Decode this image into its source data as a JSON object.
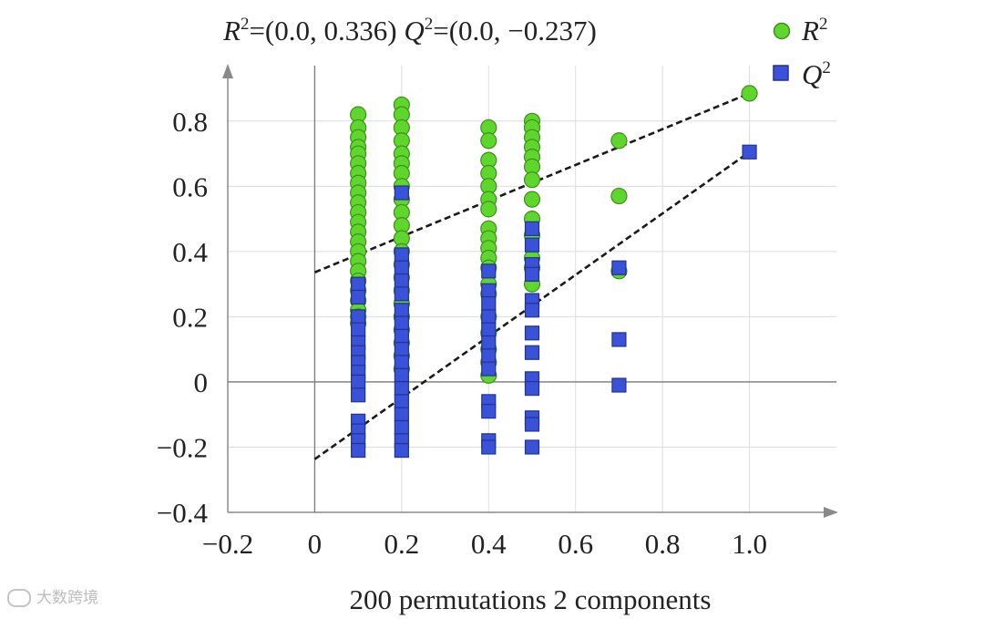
{
  "chart_data": {
    "type": "scatter",
    "title": {
      "r2_symbol": "R",
      "r2_exp": "2",
      "r2_rest": "=(0.0, 0.336) ",
      "q2_symbol": "Q",
      "q2_exp": "2",
      "q2_rest": "=(0.0, −0.237)"
    },
    "xlabel": "200 permutations 2 components",
    "xlim": [
      -0.2,
      1.2
    ],
    "ylim": [
      -0.4,
      0.97
    ],
    "xticks": [
      {
        "value": -0.2,
        "label": "−0.2"
      },
      {
        "value": 0,
        "label": "0"
      },
      {
        "value": 0.2,
        "label": "0.2"
      },
      {
        "value": 0.4,
        "label": "0.4"
      },
      {
        "value": 0.6,
        "label": "0.6"
      },
      {
        "value": 0.8,
        "label": "0.8"
      },
      {
        "value": 1.0,
        "label": "1.0"
      }
    ],
    "yticks": [
      {
        "value": -0.4,
        "label": "−0.4"
      },
      {
        "value": -0.2,
        "label": "−0.2"
      },
      {
        "value": 0,
        "label": "0"
      },
      {
        "value": 0.2,
        "label": "0.2"
      },
      {
        "value": 0.4,
        "label": "0.4"
      },
      {
        "value": 0.6,
        "label": "0.6"
      },
      {
        "value": 0.8,
        "label": "0.8"
      }
    ],
    "grid": true,
    "legend_position": "top-right",
    "series": [
      {
        "name": "R",
        "name_exp": "2",
        "marker": "circle",
        "color": "#5fd62c",
        "edge": "#3f8f1e",
        "points": [
          [
            0.1,
            0.82
          ],
          [
            0.1,
            0.78
          ],
          [
            0.1,
            0.75
          ],
          [
            0.1,
            0.72
          ],
          [
            0.1,
            0.7
          ],
          [
            0.1,
            0.67
          ],
          [
            0.1,
            0.64
          ],
          [
            0.1,
            0.61
          ],
          [
            0.1,
            0.58
          ],
          [
            0.1,
            0.55
          ],
          [
            0.1,
            0.52
          ],
          [
            0.1,
            0.49
          ],
          [
            0.1,
            0.46
          ],
          [
            0.1,
            0.43
          ],
          [
            0.1,
            0.4
          ],
          [
            0.1,
            0.37
          ],
          [
            0.1,
            0.34
          ],
          [
            0.1,
            0.31
          ],
          [
            0.1,
            0.28
          ],
          [
            0.1,
            0.25
          ],
          [
            0.1,
            0.22
          ],
          [
            0.1,
            0.2
          ],
          [
            0.1,
            0.18
          ],
          [
            0.2,
            0.85
          ],
          [
            0.2,
            0.82
          ],
          [
            0.2,
            0.78
          ],
          [
            0.2,
            0.74
          ],
          [
            0.2,
            0.7
          ],
          [
            0.2,
            0.67
          ],
          [
            0.2,
            0.64
          ],
          [
            0.2,
            0.6
          ],
          [
            0.2,
            0.56
          ],
          [
            0.2,
            0.52
          ],
          [
            0.2,
            0.48
          ],
          [
            0.2,
            0.44
          ],
          [
            0.2,
            0.4
          ],
          [
            0.2,
            0.36
          ],
          [
            0.2,
            0.32
          ],
          [
            0.2,
            0.28
          ],
          [
            0.2,
            0.24
          ],
          [
            0.2,
            0.2
          ],
          [
            0.2,
            0.16
          ],
          [
            0.2,
            0.12
          ],
          [
            0.2,
            0.08
          ],
          [
            0.2,
            0.04
          ],
          [
            0.4,
            0.78
          ],
          [
            0.4,
            0.74
          ],
          [
            0.4,
            0.68
          ],
          [
            0.4,
            0.64
          ],
          [
            0.4,
            0.6
          ],
          [
            0.4,
            0.56
          ],
          [
            0.4,
            0.53
          ],
          [
            0.4,
            0.47
          ],
          [
            0.4,
            0.44
          ],
          [
            0.4,
            0.41
          ],
          [
            0.4,
            0.38
          ],
          [
            0.4,
            0.35
          ],
          [
            0.4,
            0.3
          ],
          [
            0.4,
            0.27
          ],
          [
            0.4,
            0.2
          ],
          [
            0.4,
            0.15
          ],
          [
            0.4,
            0.1
          ],
          [
            0.4,
            0.06
          ],
          [
            0.4,
            0.02
          ],
          [
            0.5,
            0.8
          ],
          [
            0.5,
            0.78
          ],
          [
            0.5,
            0.75
          ],
          [
            0.5,
            0.72
          ],
          [
            0.5,
            0.69
          ],
          [
            0.5,
            0.66
          ],
          [
            0.5,
            0.62
          ],
          [
            0.5,
            0.56
          ],
          [
            0.5,
            0.5
          ],
          [
            0.5,
            0.45
          ],
          [
            0.5,
            0.38
          ],
          [
            0.5,
            0.35
          ],
          [
            0.5,
            0.3
          ],
          [
            0.7,
            0.74
          ],
          [
            0.7,
            0.57
          ],
          [
            0.7,
            0.34
          ],
          [
            1.0,
            0.885
          ]
        ]
      },
      {
        "name": "Q",
        "name_exp": "2",
        "marker": "square",
        "color": "#3a52d8",
        "edge": "#22338f",
        "points": [
          [
            0.1,
            0.3
          ],
          [
            0.1,
            0.26
          ],
          [
            0.1,
            0.2
          ],
          [
            0.1,
            0.16
          ],
          [
            0.1,
            0.12
          ],
          [
            0.1,
            0.09
          ],
          [
            0.1,
            0.06
          ],
          [
            0.1,
            0.03
          ],
          [
            0.1,
            0.0
          ],
          [
            0.1,
            -0.04
          ],
          [
            0.1,
            -0.12
          ],
          [
            0.1,
            -0.15
          ],
          [
            0.1,
            -0.18
          ],
          [
            0.1,
            -0.21
          ],
          [
            0.2,
            0.58
          ],
          [
            0.2,
            0.39
          ],
          [
            0.2,
            0.35
          ],
          [
            0.2,
            0.31
          ],
          [
            0.2,
            0.27
          ],
          [
            0.2,
            0.22
          ],
          [
            0.2,
            0.18
          ],
          [
            0.2,
            0.14
          ],
          [
            0.2,
            0.1
          ],
          [
            0.2,
            0.06
          ],
          [
            0.2,
            0.02
          ],
          [
            0.2,
            -0.02
          ],
          [
            0.2,
            -0.06
          ],
          [
            0.2,
            -0.1
          ],
          [
            0.2,
            -0.14
          ],
          [
            0.2,
            -0.18
          ],
          [
            0.2,
            -0.21
          ],
          [
            0.4,
            0.34
          ],
          [
            0.4,
            0.28
          ],
          [
            0.4,
            0.24
          ],
          [
            0.4,
            0.2
          ],
          [
            0.4,
            0.16
          ],
          [
            0.4,
            0.12
          ],
          [
            0.4,
            0.08
          ],
          [
            0.4,
            0.04
          ],
          [
            0.4,
            -0.06
          ],
          [
            0.4,
            -0.09
          ],
          [
            0.4,
            -0.18
          ],
          [
            0.4,
            -0.2
          ],
          [
            0.5,
            0.47
          ],
          [
            0.5,
            0.42
          ],
          [
            0.5,
            0.36
          ],
          [
            0.5,
            0.33
          ],
          [
            0.5,
            0.25
          ],
          [
            0.5,
            0.22
          ],
          [
            0.5,
            0.15
          ],
          [
            0.5,
            0.09
          ],
          [
            0.5,
            0.01
          ],
          [
            0.5,
            -0.02
          ],
          [
            0.5,
            -0.11
          ],
          [
            0.5,
            -0.13
          ],
          [
            0.5,
            -0.2
          ],
          [
            0.7,
            0.35
          ],
          [
            0.7,
            0.13
          ],
          [
            0.7,
            -0.01
          ],
          [
            1.0,
            0.705
          ]
        ]
      }
    ],
    "regression_lines": [
      {
        "name": "R2-fit",
        "from": [
          0.0,
          0.336
        ],
        "to": [
          1.0,
          0.885
        ]
      },
      {
        "name": "Q2-fit",
        "from": [
          0.0,
          -0.237
        ],
        "to": [
          1.0,
          0.705
        ]
      }
    ]
  },
  "watermark": {
    "text": "大数跨境"
  }
}
